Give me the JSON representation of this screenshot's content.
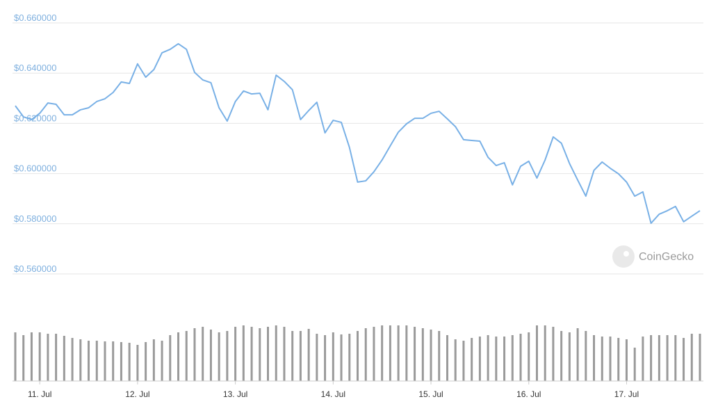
{
  "chart_data": [
    {
      "type": "line",
      "color": "#78b0e6",
      "grid": true,
      "annotation": "CoinGecko",
      "categories": [
        null,
        null,
        null,
        "11. Jul",
        null,
        null,
        null,
        null,
        null,
        null,
        null,
        null,
        null,
        null,
        null,
        "12. Jul",
        null,
        null,
        null,
        null,
        null,
        null,
        null,
        null,
        null,
        null,
        null,
        "13. Jul",
        null,
        null,
        null,
        null,
        null,
        null,
        null,
        null,
        null,
        null,
        null,
        "14. Jul",
        null,
        null,
        null,
        null,
        null,
        null,
        null,
        null,
        null,
        null,
        null,
        "15. Jul",
        null,
        null,
        null,
        null,
        null,
        null,
        null,
        null,
        null,
        null,
        null,
        "16. Jul",
        null,
        null,
        null,
        null,
        null,
        null,
        null,
        null,
        null,
        null,
        null,
        "17. Jul",
        null,
        null,
        null,
        null,
        null,
        null,
        null,
        null,
        null
      ],
      "values": [
        0.627,
        0.6226,
        0.6215,
        0.624,
        0.6281,
        0.6276,
        0.6234,
        0.6234,
        0.6254,
        0.6262,
        0.6287,
        0.6298,
        0.6323,
        0.6365,
        0.6359,
        0.6437,
        0.6384,
        0.6414,
        0.6481,
        0.6495,
        0.6517,
        0.6495,
        0.6403,
        0.6373,
        0.6362,
        0.6262,
        0.6209,
        0.6287,
        0.6329,
        0.6317,
        0.632,
        0.6254,
        0.6392,
        0.6367,
        0.6334,
        0.6215,
        0.6251,
        0.6284,
        0.6162,
        0.6212,
        0.6204,
        0.6104,
        0.5966,
        0.5971,
        0.6007,
        0.6054,
        0.611,
        0.6165,
        0.6198,
        0.622,
        0.622,
        0.624,
        0.6248,
        0.6218,
        0.6187,
        0.6135,
        0.6132,
        0.6129,
        0.6065,
        0.6032,
        0.6043,
        0.5955,
        0.6029,
        0.6049,
        0.5982,
        0.6054,
        0.6146,
        0.6121,
        0.604,
        0.5974,
        0.591,
        0.6013,
        0.6046,
        0.6021,
        0.5999,
        0.5966,
        0.591,
        0.5927,
        0.5802,
        0.5838,
        0.5852,
        0.5869,
        0.5808,
        0.583,
        0.5852
      ],
      "ylim": [
        0.56,
        0.66
      ],
      "yticks": [
        {
          "value": 0.56,
          "label": "$0.560000"
        },
        {
          "value": 0.58,
          "label": "$0.580000"
        },
        {
          "value": 0.6,
          "label": "$0.600000"
        },
        {
          "value": 0.62,
          "label": "$0.620000"
        },
        {
          "value": 0.64,
          "label": "$0.640000"
        },
        {
          "value": 0.66,
          "label": "$0.660000"
        }
      ]
    },
    {
      "type": "bar",
      "color": "#9a9a9a",
      "values": [
        70,
        66,
        70,
        70,
        68,
        68,
        65,
        62,
        60,
        58,
        58,
        57,
        57,
        56,
        55,
        52,
        56,
        60,
        58,
        66,
        70,
        72,
        76,
        78,
        74,
        70,
        72,
        78,
        80,
        78,
        76,
        78,
        80,
        78,
        72,
        72,
        75,
        68,
        66,
        70,
        67,
        68,
        72,
        76,
        78,
        80,
        80,
        80,
        80,
        78,
        76,
        74,
        72,
        66,
        60,
        58,
        62,
        64,
        66,
        64,
        64,
        66,
        68,
        70,
        80,
        80,
        78,
        72,
        70,
        76,
        72,
        66,
        64,
        64,
        62,
        60,
        48,
        64,
        66,
        66,
        66,
        66,
        62,
        68,
        68
      ],
      "ylim": [
        0,
        100
      ]
    }
  ]
}
